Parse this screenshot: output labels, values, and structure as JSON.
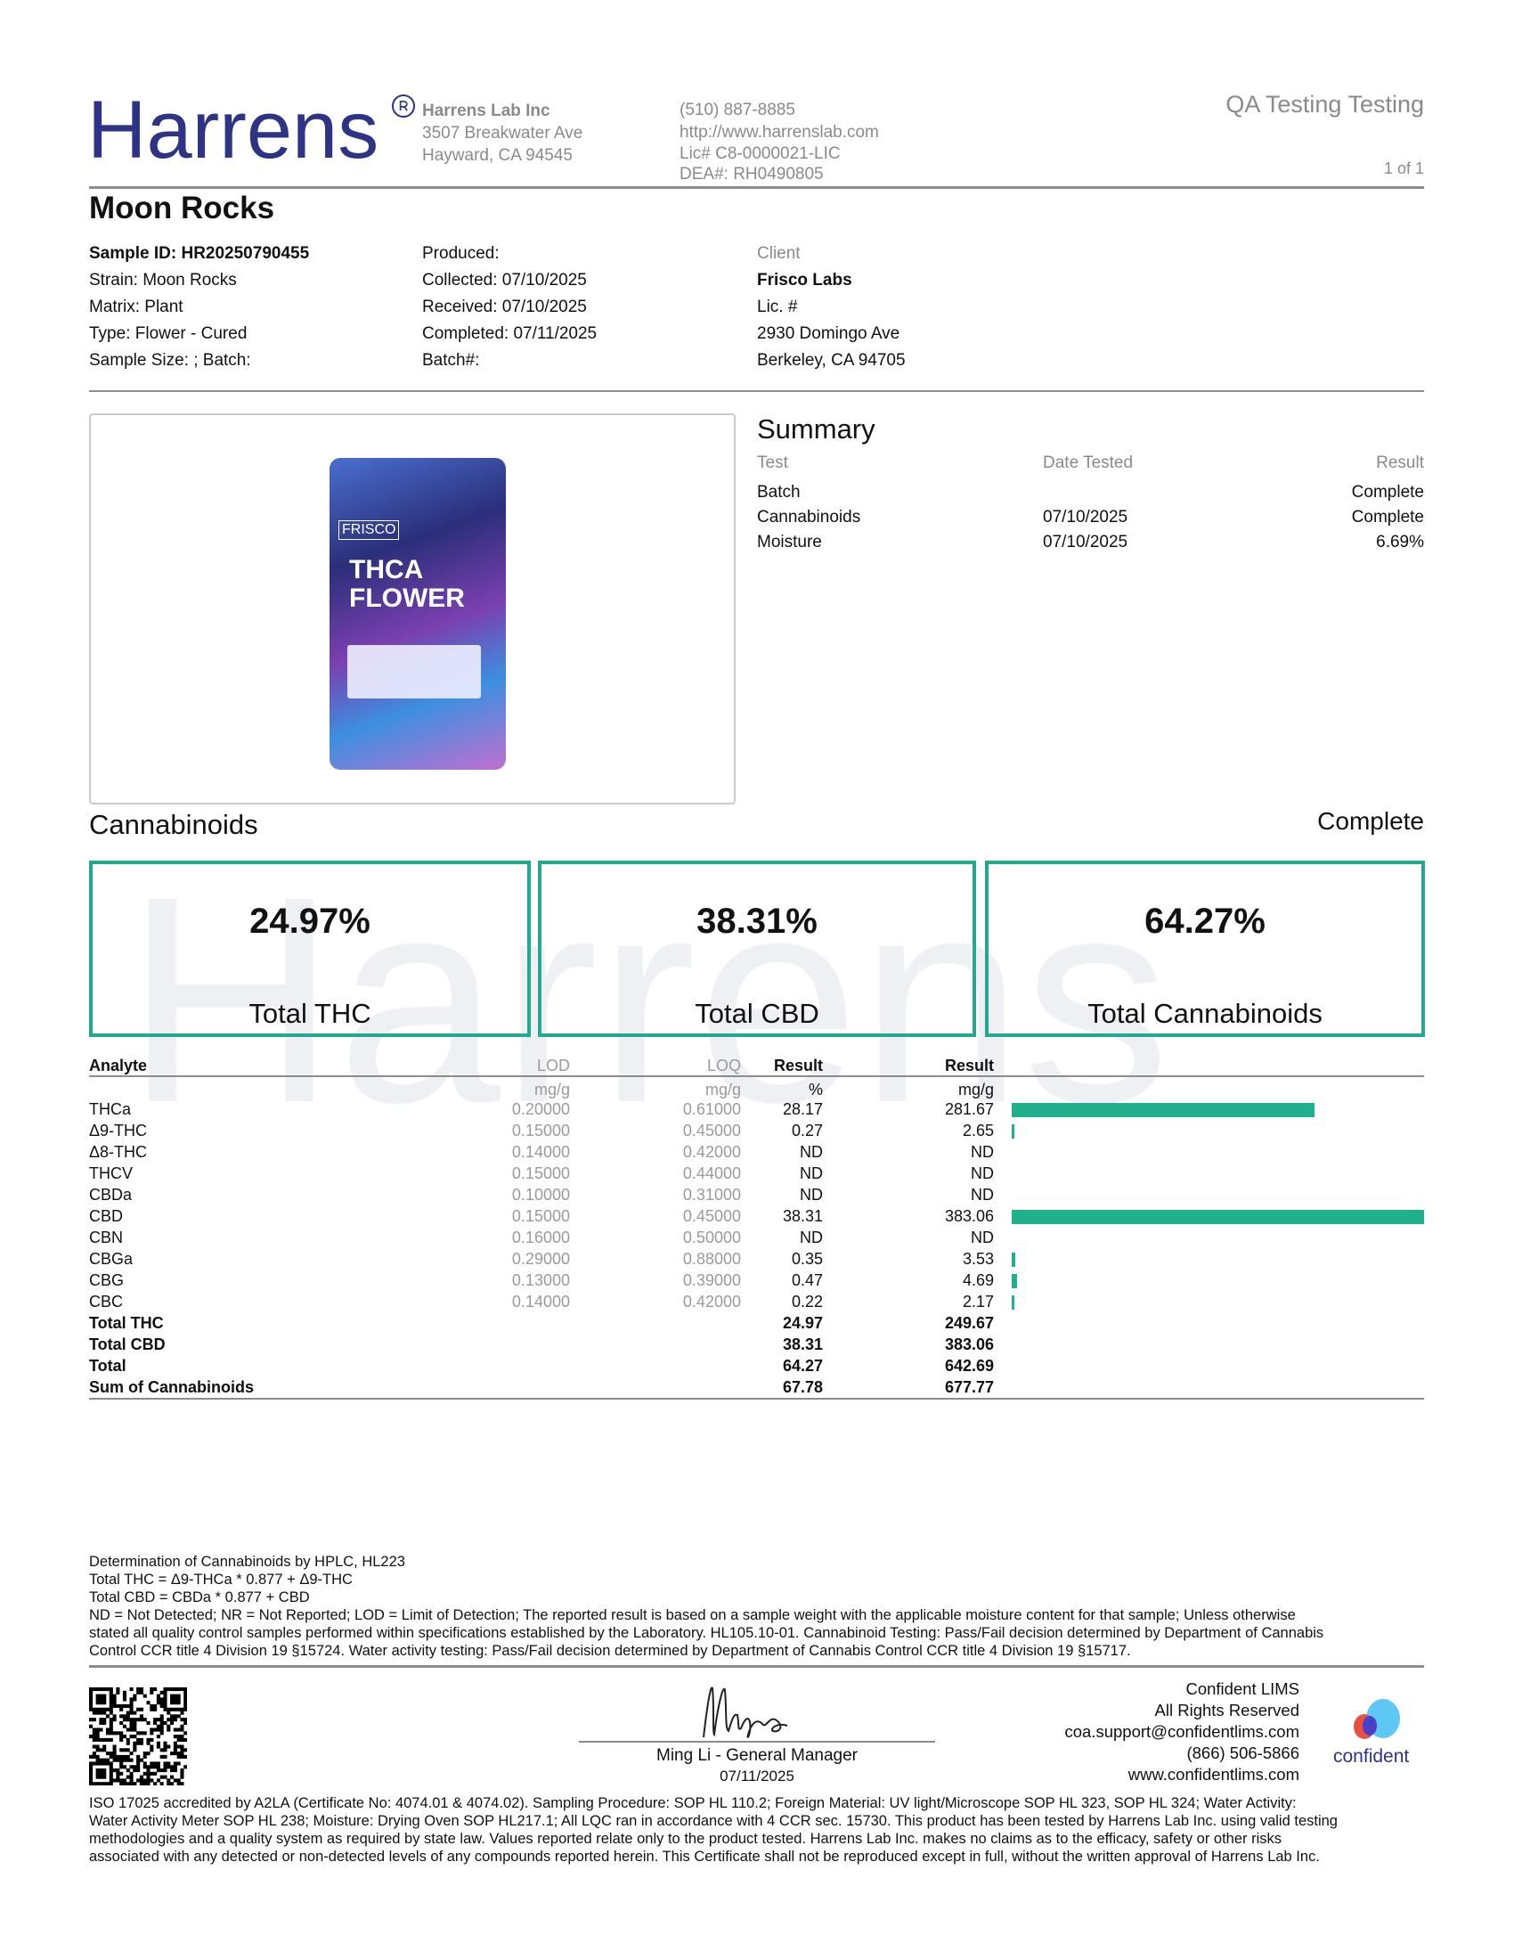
{
  "header": {
    "logo": "Harrens",
    "company": "Harrens Lab Inc",
    "address1": "3507 Breakwater Ave",
    "address2": "Hayward, CA 94545",
    "phone": "(510) 887-8885",
    "url": "http://www.harrenslab.com",
    "license": "Lic# C8-0000021-LIC",
    "dea": "DEA#: RH0490805",
    "doc_type": "QA Testing Testing",
    "page": "1 of 1"
  },
  "title": "Moon Rocks",
  "sample": [
    "Sample ID: HR20250790455",
    "Strain: Moon Rocks",
    "Matrix: Plant",
    "Type: Flower - Cured",
    "Sample Size: ; Batch:"
  ],
  "dates": [
    "Produced:",
    "Collected: 07/10/2025",
    "Received: 07/10/2025",
    "Completed: 07/11/2025",
    "Batch#:"
  ],
  "client": {
    "label": "Client",
    "name": "Frisco Labs",
    "lic": "Lic. #",
    "addr1": "2930 Domingo Ave",
    "addr2": "Berkeley, CA 94705"
  },
  "product_image": {
    "brand": "FRISCO",
    "text": "THCA FLOWER"
  },
  "summary": {
    "title": "Summary",
    "headers": [
      "Test",
      "Date Tested",
      "Result"
    ],
    "rows": [
      [
        "Batch",
        "",
        "Complete"
      ],
      [
        "Cannabinoids",
        "07/10/2025",
        "Complete"
      ],
      [
        "Moisture",
        "07/10/2025",
        "6.69%"
      ]
    ]
  },
  "cannabinoids": {
    "title": "Cannabinoids",
    "status": "Complete",
    "cards": [
      {
        "value": "24.97%",
        "label": "Total THC"
      },
      {
        "value": "38.31%",
        "label": "Total CBD"
      },
      {
        "value": "64.27%",
        "label": "Total Cannabinoids"
      }
    ],
    "headers": [
      "Analyte",
      "LOD",
      "LOQ",
      "Result",
      "Result"
    ],
    "units": [
      "",
      "mg/g",
      "mg/g",
      "%",
      "mg/g"
    ],
    "bar_color": "#1fb08e",
    "bar_max": 383.06,
    "rows": [
      [
        "THCa",
        "0.20000",
        "0.61000",
        "28.17",
        "281.67"
      ],
      [
        "Δ9-THC",
        "0.15000",
        "0.45000",
        "0.27",
        "2.65"
      ],
      [
        "Δ8-THC",
        "0.14000",
        "0.42000",
        "ND",
        "ND"
      ],
      [
        "THCV",
        "0.15000",
        "0.44000",
        "ND",
        "ND"
      ],
      [
        "CBDa",
        "0.10000",
        "0.31000",
        "ND",
        "ND"
      ],
      [
        "CBD",
        "0.15000",
        "0.45000",
        "38.31",
        "383.06"
      ],
      [
        "CBN",
        "0.16000",
        "0.50000",
        "ND",
        "ND"
      ],
      [
        "CBGa",
        "0.29000",
        "0.88000",
        "0.35",
        "3.53"
      ],
      [
        "CBG",
        "0.13000",
        "0.39000",
        "0.47",
        "4.69"
      ],
      [
        "CBC",
        "0.14000",
        "0.42000",
        "0.22",
        "2.17"
      ]
    ],
    "totals": [
      [
        "Total THC",
        "24.97",
        "249.67"
      ],
      [
        "Total CBD",
        "38.31",
        "383.06"
      ],
      [
        "Total",
        "64.27",
        "642.69"
      ],
      [
        "Sum of Cannabinoids",
        "67.78",
        "677.77"
      ]
    ]
  },
  "notes": [
    "Determination of Cannabinoids by HPLC, HL223",
    "Total THC = Δ9-THCa * 0.877 + Δ9-THC",
    "Total CBD = CBDa * 0.877 + CBD",
    "ND = Not Detected; NR = Not Reported; LOD = Limit of Detection; The reported result is based on a sample weight with the applicable moisture content for that sample; Unless otherwise",
    "stated all quality control samples performed within specifications established by the Laboratory. HL105.10-01. Cannabinoid Testing: Pass/Fail decision determined by Department of Cannabis",
    "Control CCR title 4 Division 19 §15724. Water activity testing: Pass/Fail decision determined by Department of Cannabis Control CCR title 4 Division 19 §15717."
  ],
  "signature": {
    "name": "Ming Li - General Manager",
    "date": "07/11/2025"
  },
  "lims": {
    "lines": [
      "Confident LIMS",
      "All Rights Reserved",
      "coa.support@confidentlims.com",
      "(866) 506-5866",
      "www.confidentlims.com"
    ],
    "logo": "confident"
  },
  "disclaimer": [
    "ISO 17025 accredited by A2LA (Certificate No: 4074.01 & 4074.02). Sampling Procedure: SOP HL 110.2; Foreign Material: UV light/Microscope SOP HL 323, SOP HL 324; Water Activity:",
    "Water Activity Meter SOP HL 238; Moisture: Drying Oven SOP HL217.1; All LQC ran in accordance with 4 CCR sec. 15730. This product has been tested by Harrens Lab Inc. using valid testing",
    "methodologies and a quality system as required by state law. Values reported relate only to the product tested. Harrens Lab Inc. makes no claims as to the efficacy, safety or other risks",
    "associated with any detected or non-detected levels of any compounds reported herein. This Certificate shall not be reproduced except in full, without the written approval of Harrens Lab Inc."
  ]
}
